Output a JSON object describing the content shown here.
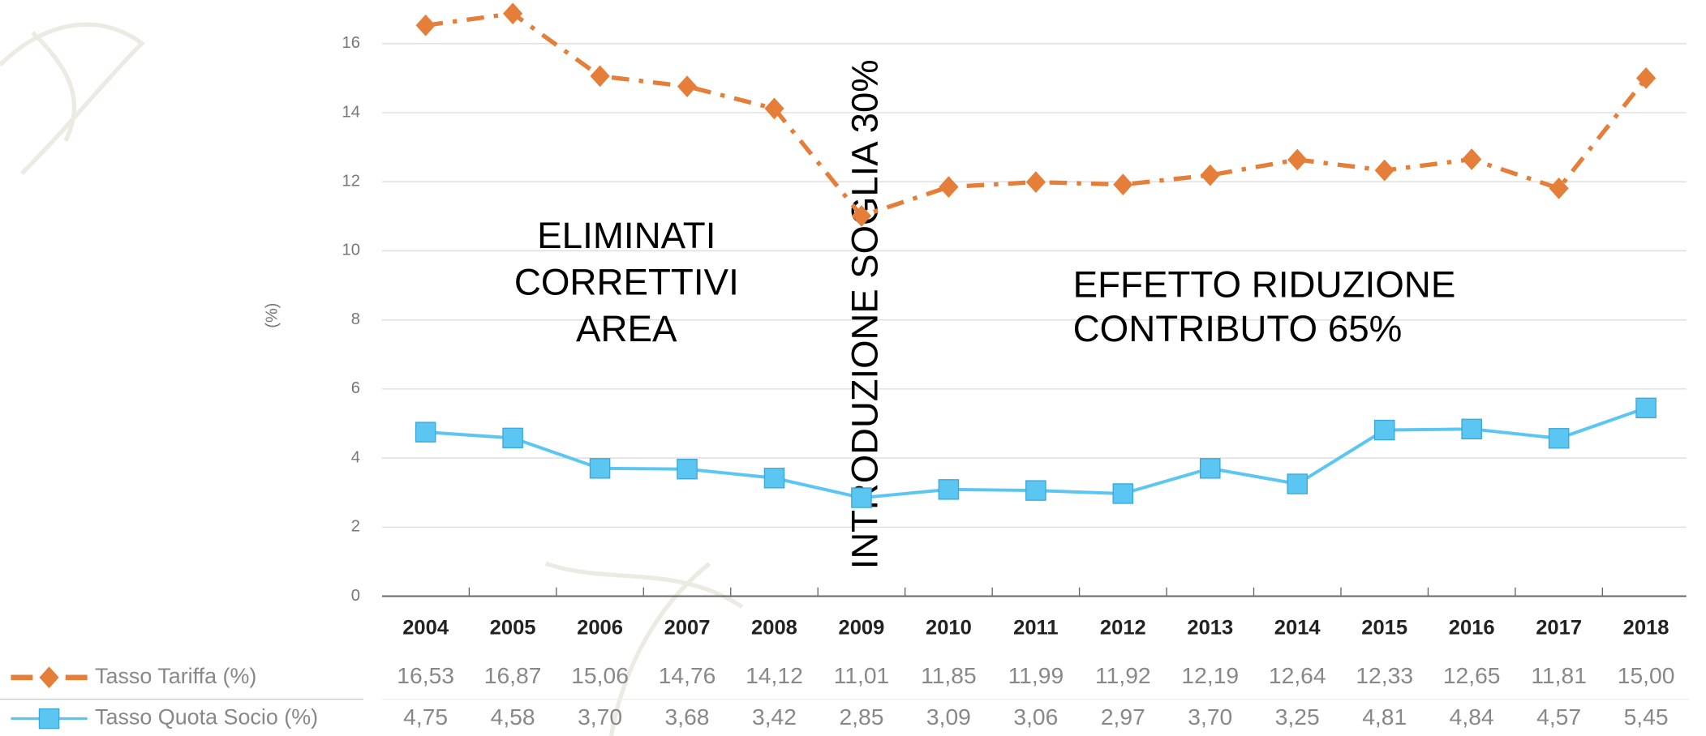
{
  "chart_data": {
    "type": "line",
    "y_label": "(%)",
    "categories": [
      "2004",
      "2005",
      "2006",
      "2007",
      "2008",
      "2009",
      "2010",
      "2011",
      "2012",
      "2013",
      "2014",
      "2015",
      "2016",
      "2017",
      "2018"
    ],
    "series": [
      {
        "name": "Tasso Tariffa (%)",
        "color": "#e47e39",
        "marker": "diamond",
        "dash": "dashdot",
        "values": [
          16.53,
          16.87,
          15.06,
          14.76,
          14.12,
          11.01,
          11.85,
          11.99,
          11.92,
          12.19,
          12.64,
          12.33,
          12.65,
          11.81,
          15.0
        ],
        "value_labels": [
          "16,53",
          "16,87",
          "15,06",
          "14,76",
          "14,12",
          "11,01",
          "11,85",
          "11,99",
          "11,92",
          "12,19",
          "12,64",
          "12,33",
          "12,65",
          "11,81",
          "15,00"
        ]
      },
      {
        "name": "Tasso Quota Socio (%)",
        "color": "#5cc6f2",
        "marker": "square",
        "dash": "solid",
        "values": [
          4.75,
          4.58,
          3.7,
          3.68,
          3.42,
          2.85,
          3.09,
          3.06,
          2.97,
          3.7,
          3.25,
          4.81,
          4.84,
          4.57,
          5.45
        ],
        "value_labels": [
          "4,75",
          "4,58",
          "3,70",
          "3,68",
          "3,42",
          "2,85",
          "3,09",
          "3,06",
          "2,97",
          "3,70",
          "3,25",
          "4,81",
          "4,84",
          "4,57",
          "5,45"
        ]
      }
    ],
    "ylim": [
      0,
      17.2
    ],
    "yticks": [
      0,
      2,
      4,
      6,
      8,
      10,
      12,
      14,
      16
    ],
    "grid": true,
    "annotations": [
      {
        "lines": [
          "ELIMINATI",
          "CORRETTIVI",
          "AREA"
        ],
        "align": "center",
        "rotate": false
      },
      {
        "lines": [
          "INTRODUZIONE SOGLIA 30%"
        ],
        "align": "center",
        "rotate": true
      },
      {
        "lines": [
          "EFFETTO RIDUZIONE",
          "CONTRIBUTO 65%"
        ],
        "align": "left",
        "rotate": false
      }
    ]
  }
}
